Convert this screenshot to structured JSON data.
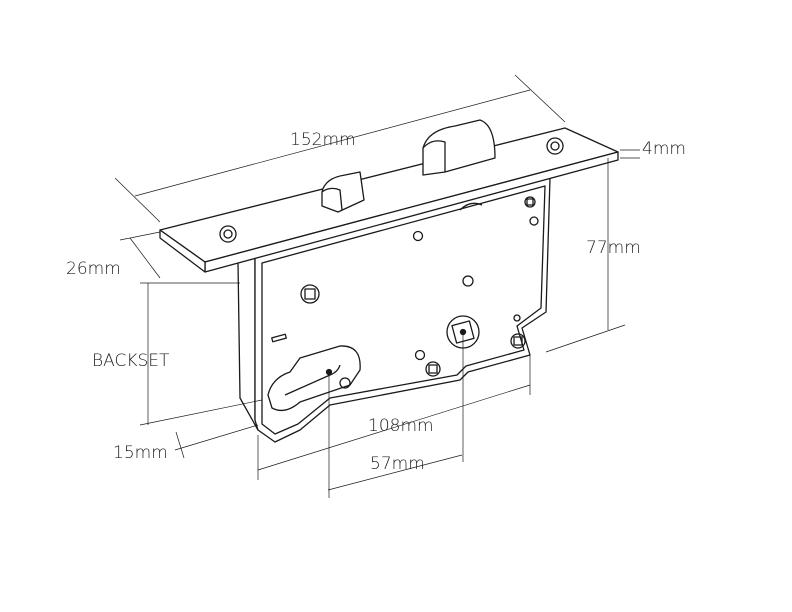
{
  "diagram": {
    "subject": "mortise lock",
    "line_color": "#1a1a1a",
    "labels": {
      "length": "152mm",
      "faceplate_thickness": "4mm",
      "height": "77mm",
      "faceplate_width": "26mm",
      "backset": "BACKSET",
      "body_depth": "108mm",
      "center_distance": "57mm",
      "offset": "15mm"
    }
  }
}
